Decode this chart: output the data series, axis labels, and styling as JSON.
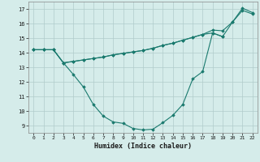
{
  "xlabel": "Humidex (Indice chaleur)",
  "x": [
    0,
    1,
    2,
    3,
    4,
    5,
    6,
    7,
    8,
    9,
    10,
    11,
    12,
    13,
    14,
    15,
    16,
    17,
    18,
    19,
    20,
    21,
    22
  ],
  "line1": [
    14.2,
    14.2,
    14.2,
    13.3,
    13.4,
    13.5,
    13.6,
    13.7,
    13.85,
    13.95,
    14.05,
    14.15,
    14.3,
    14.5,
    14.65,
    14.85,
    15.05,
    15.25,
    15.35,
    15.1,
    16.1,
    17.05,
    16.75
  ],
  "line2": [
    14.2,
    14.2,
    14.2,
    13.3,
    13.4,
    13.5,
    13.6,
    13.7,
    13.85,
    13.95,
    14.05,
    14.15,
    14.3,
    14.5,
    14.65,
    14.85,
    15.05,
    15.25,
    15.55,
    15.5,
    16.1,
    16.9,
    16.65
  ],
  "line3": [
    14.2,
    14.2,
    14.2,
    13.3,
    12.5,
    11.65,
    10.45,
    9.65,
    9.25,
    9.15,
    8.8,
    8.7,
    8.75,
    9.2,
    9.7,
    10.45,
    12.2,
    12.7,
    15.35,
    15.1,
    null,
    null,
    null
  ],
  "xlim": [
    -0.5,
    22.5
  ],
  "ylim": [
    8.5,
    17.5
  ],
  "yticks": [
    9,
    10,
    11,
    12,
    13,
    14,
    15,
    16,
    17
  ],
  "xticks": [
    0,
    1,
    2,
    3,
    4,
    5,
    6,
    7,
    8,
    9,
    10,
    11,
    12,
    13,
    14,
    15,
    16,
    17,
    18,
    19,
    20,
    21,
    22
  ],
  "line_color": "#1a7a6e",
  "bg_color": "#d5ecea",
  "grid_color": "#b0cccb",
  "grid_major_color": "#c0d8d6"
}
